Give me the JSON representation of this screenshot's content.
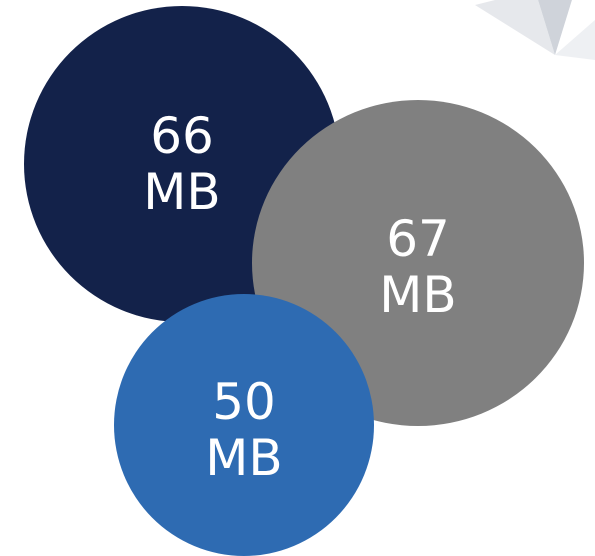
{
  "bubbles": [
    {
      "value": "66",
      "unit": "MB",
      "color": "#13224a"
    },
    {
      "value": "67",
      "unit": "MB",
      "color": "#808080"
    },
    {
      "value": "50",
      "unit": "MB",
      "color": "#2e6bb2"
    }
  ]
}
